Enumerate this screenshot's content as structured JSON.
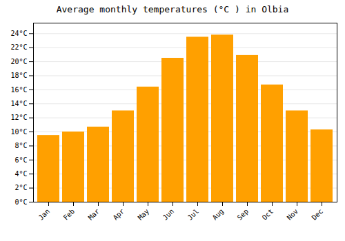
{
  "chart_data": {
    "type": "bar",
    "title": "Average monthly temperatures (°C ) in Olbia",
    "categories": [
      "Jan",
      "Feb",
      "Mar",
      "Apr",
      "May",
      "Jun",
      "Jul",
      "Aug",
      "Sep",
      "Oct",
      "Nov",
      "Dec"
    ],
    "values": [
      9.5,
      10.0,
      10.7,
      13.0,
      16.4,
      20.5,
      23.5,
      23.8,
      20.9,
      16.7,
      13.0,
      10.3
    ],
    "color": "#FFA000",
    "ylim": [
      0,
      25.5
    ],
    "yticks": [
      {
        "value": 0,
        "label": "0°C"
      },
      {
        "value": 2,
        "label": "2°C"
      },
      {
        "value": 4,
        "label": "4°C"
      },
      {
        "value": 6,
        "label": "6°C"
      },
      {
        "value": 8,
        "label": "8°C"
      },
      {
        "value": 10,
        "label": "10°C"
      },
      {
        "value": 12,
        "label": "12°C"
      },
      {
        "value": 14,
        "label": "14°C"
      },
      {
        "value": 16,
        "label": "16°C"
      },
      {
        "value": 18,
        "label": "18°C"
      },
      {
        "value": 20,
        "label": "20°C"
      },
      {
        "value": 22,
        "label": "22°C"
      },
      {
        "value": 24,
        "label": "24°C"
      }
    ],
    "grid": true
  }
}
